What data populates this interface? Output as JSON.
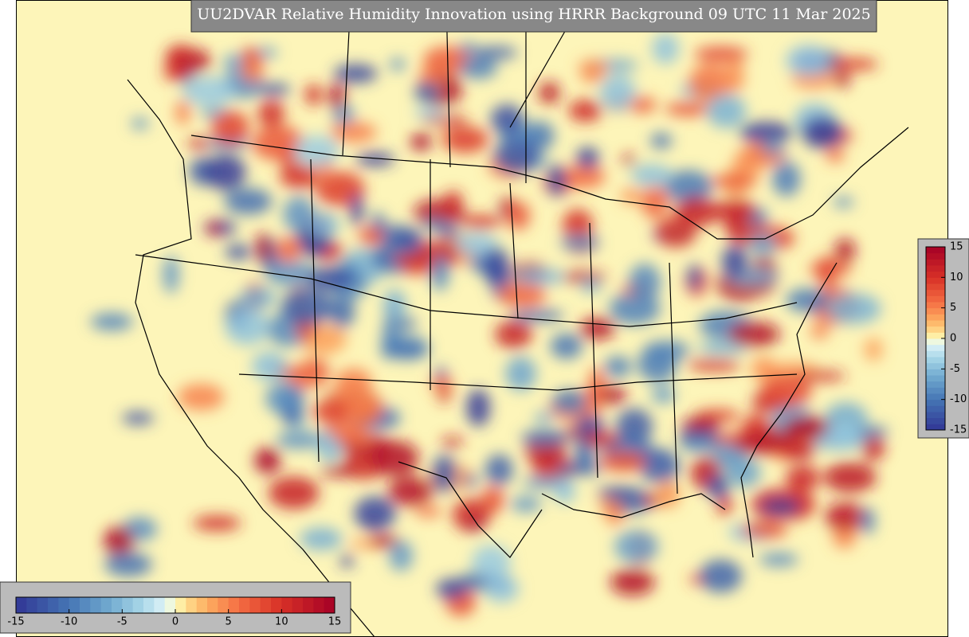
{
  "title": "UU2DVAR Relative Humidity Innovation using HRRR Background 09 UTC 11 Mar 2025",
  "vertical_colorbar": {
    "range": [
      -15,
      15
    ],
    "ticks": [
      15,
      10,
      5,
      0,
      -5,
      -10,
      -15
    ]
  },
  "horizontal_colorbar": {
    "range": [
      -15,
      15
    ],
    "ticks": [
      -15,
      -10,
      -5,
      0,
      5,
      10,
      15
    ]
  }
}
